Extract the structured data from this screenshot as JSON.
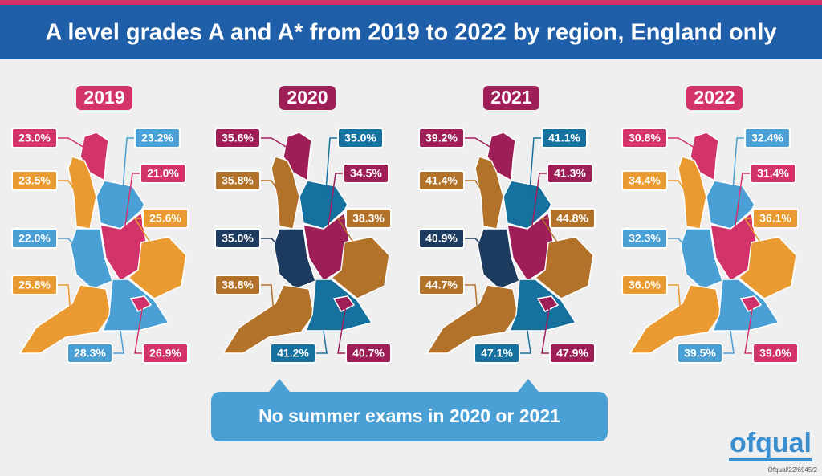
{
  "header": {
    "title": "A level grades A and A* from 2019 to 2022 by region, England only"
  },
  "maps": [
    {
      "year": "2019",
      "badge_color": "#d2336b",
      "labels": [
        {
          "text": "23.0%",
          "color": "#d2336b"
        },
        {
          "text": "23.5%",
          "color": "#e99a30"
        },
        {
          "text": "22.0%",
          "color": "#4a9fd5"
        },
        {
          "text": "25.8%",
          "color": "#e99a30"
        },
        {
          "text": "23.2%",
          "color": "#4a9fd5"
        },
        {
          "text": "21.0%",
          "color": "#d2336b"
        },
        {
          "text": "25.6%",
          "color": "#e99a30"
        },
        {
          "text": "28.3%",
          "color": "#4a9fd5"
        },
        {
          "text": "26.9%",
          "color": "#d2336b"
        }
      ]
    },
    {
      "year": "2020",
      "badge_color": "#9e1f58",
      "labels": [
        {
          "text": "35.6%",
          "color": "#9e1f58"
        },
        {
          "text": "35.8%",
          "color": "#b3722a"
        },
        {
          "text": "35.0%",
          "color": "#1d3b5f"
        },
        {
          "text": "38.8%",
          "color": "#b3722a"
        },
        {
          "text": "35.0%",
          "color": "#17719f"
        },
        {
          "text": "34.5%",
          "color": "#9e1f58"
        },
        {
          "text": "38.3%",
          "color": "#b3722a"
        },
        {
          "text": "41.2%",
          "color": "#17719f"
        },
        {
          "text": "40.7%",
          "color": "#9e1f58"
        }
      ]
    },
    {
      "year": "2021",
      "badge_color": "#9e1f58",
      "labels": [
        {
          "text": "39.2%",
          "color": "#9e1f58"
        },
        {
          "text": "41.4%",
          "color": "#b3722a"
        },
        {
          "text": "40.9%",
          "color": "#1d3b5f"
        },
        {
          "text": "44.7%",
          "color": "#b3722a"
        },
        {
          "text": "41.1%",
          "color": "#17719f"
        },
        {
          "text": "41.3%",
          "color": "#9e1f58"
        },
        {
          "text": "44.8%",
          "color": "#b3722a"
        },
        {
          "text": "47.1%",
          "color": "#17719f"
        },
        {
          "text": "47.9%",
          "color": "#9e1f58"
        }
      ]
    },
    {
      "year": "2022",
      "badge_color": "#d2336b",
      "labels": [
        {
          "text": "30.8%",
          "color": "#d2336b"
        },
        {
          "text": "34.4%",
          "color": "#e99a30"
        },
        {
          "text": "32.3%",
          "color": "#4a9fd5"
        },
        {
          "text": "36.0%",
          "color": "#e99a30"
        },
        {
          "text": "32.4%",
          "color": "#4a9fd5"
        },
        {
          "text": "31.4%",
          "color": "#d2336b"
        },
        {
          "text": "36.1%",
          "color": "#e99a30"
        },
        {
          "text": "39.5%",
          "color": "#4a9fd5"
        },
        {
          "text": "39.0%",
          "color": "#d2336b"
        }
      ]
    }
  ],
  "callout": "No summer exams in 2020 or 2021",
  "logo": "ofqual",
  "reference": "Ofqual/22/6945/2"
}
